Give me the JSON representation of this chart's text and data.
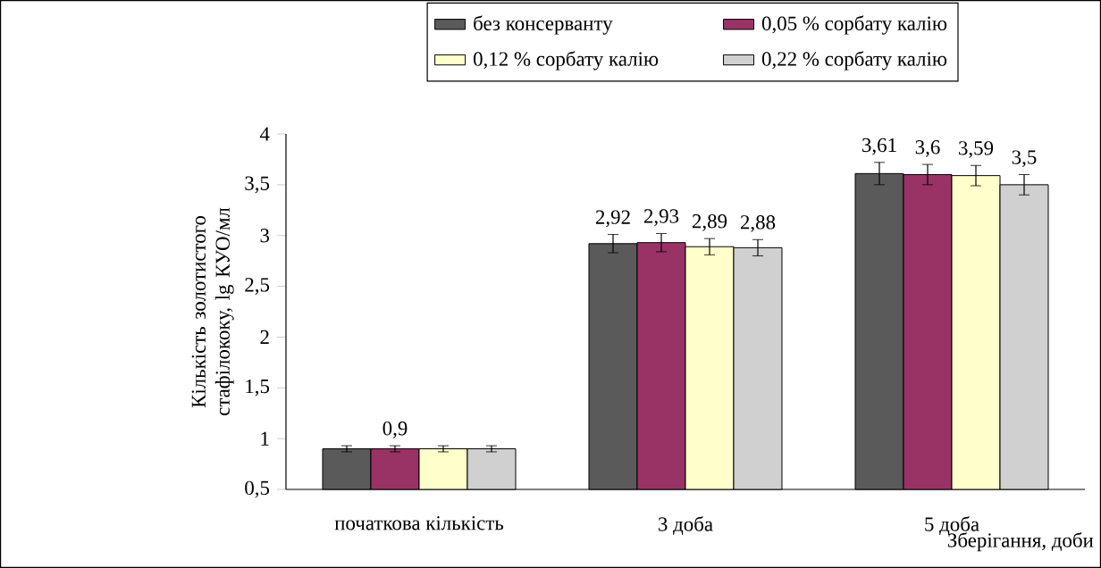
{
  "chart_data": {
    "type": "bar",
    "xlabel": "Зберігання, доби",
    "ylabel": "Кількість золотистого стафілококу, lg  КУО/мл",
    "categories": [
      "початкова кількість",
      "3 доба",
      "5 доба"
    ],
    "series": [
      {
        "name": "без консерванту",
        "color": "#5a5a5a",
        "values": [
          0.9,
          2.92,
          3.61
        ],
        "errors": [
          0.03,
          0.09,
          0.11
        ],
        "value_labels": [
          null,
          "2,92",
          "3,61"
        ]
      },
      {
        "name": "0,05 % сорбату калію",
        "color": "#993366",
        "values": [
          0.9,
          2.93,
          3.6
        ],
        "errors": [
          0.03,
          0.09,
          0.1
        ],
        "value_labels": [
          "0,9",
          "2,93",
          "3,6"
        ]
      },
      {
        "name": "0,12 % сорбату калію",
        "color": "#ffffcc",
        "values": [
          0.9,
          2.89,
          3.59
        ],
        "errors": [
          0.03,
          0.08,
          0.1
        ],
        "value_labels": [
          null,
          "2,89",
          "3,59"
        ]
      },
      {
        "name": "0,22 % сорбату калію",
        "color": "#d0d0d0",
        "values": [
          0.9,
          2.88,
          3.5
        ],
        "errors": [
          0.03,
          0.08,
          0.1
        ],
        "value_labels": [
          null,
          "2,88",
          "3,5"
        ]
      }
    ],
    "ylim": [
      0.5,
      4
    ],
    "yticks": [
      {
        "value": 0.5,
        "label": "0,5"
      },
      1,
      {
        "value": 1.5,
        "label": "1,5"
      },
      2,
      {
        "value": 2.5,
        "label": "2,5"
      },
      3,
      {
        "value": 3.5,
        "label": "3,5"
      },
      4
    ],
    "legend": "top"
  }
}
